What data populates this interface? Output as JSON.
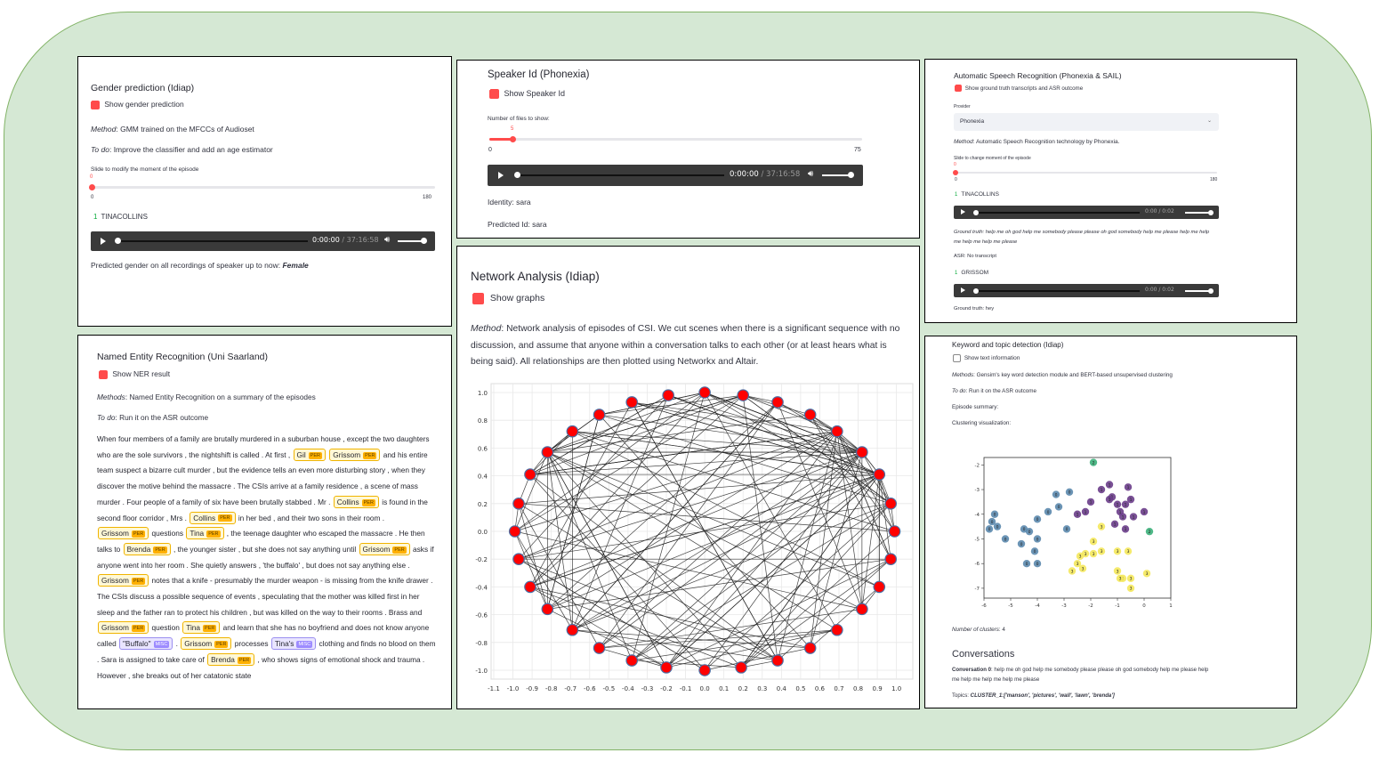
{
  "gender": {
    "title": "Gender prediction (Idiap)",
    "checkbox_label": "Show gender prediction",
    "method_label": "Method",
    "method_text": ": GMM trained on the MFCCs of Audioset",
    "todo_label": "To do",
    "todo_text": ": Improve the classifier and add an age estimator",
    "slider_label": "Slide to modify the moment of the episode",
    "slider_value": "0",
    "slider_min": "0",
    "slider_max": "180",
    "speaker_index": "1",
    "speaker_name": "TINACOLLINS",
    "audio_time": "0:00:00",
    "audio_duration": "/ 37:16:58",
    "prediction_text": "Predicted gender on all recordings of speaker up to now:",
    "prediction_value": "Female"
  },
  "speaker_id": {
    "title": "Speaker Id (Phonexia)",
    "checkbox_label": "Show Speaker Id",
    "slider_label": "Number of files to show:",
    "slider_value": "5",
    "slider_value_fraction": 0.053,
    "slider_min": "0",
    "slider_max": "75",
    "audio_time": "0:00:00",
    "audio_duration": "/ 37:16:58",
    "identity_label": "Identity: sara",
    "predicted_label": "Predicted Id: sara"
  },
  "asr": {
    "title": "Automatic Speech Recognition (Phonexia & SAIL)",
    "checkbox_label": "Show ground truth transcripts and ASR outcome",
    "provider_label": "Provider",
    "provider_value": "Phonexia",
    "method_label": "Method",
    "method_text": ": Automatic Speech Recognition technology by Phonexia.",
    "slider_label": "Slide to change moment of the episode",
    "slider_value": "0",
    "slider_min": "0",
    "slider_max": "180",
    "speaker1_index": "1",
    "speaker1_name": "TINACOLLINS",
    "audio1_time": "0:00 / 0:02",
    "ground_truth1": "Ground truth: help me oh god help me somebody please please oh god somebody help me please help me help me help me help me please",
    "asr1": "ASR: No transcript",
    "speaker2_index": "1",
    "speaker2_name": "GRISSOM",
    "audio2_time": "0:00 / 0:02",
    "ground_truth2": "Ground truth: hey"
  },
  "network": {
    "title": "Network Analysis (Idiap)",
    "checkbox_label": "Show graphs",
    "method_label": "Method",
    "method_text": ": Network analysis of episodes of CSI. We cut scenes when there is a significant sequence with no discussion, and assume that anyone within a conversation talks to each other (or at least hears what is being said). All relationships are then plotted using Networkx and Altair.",
    "x_ticks": [
      "-1.1",
      "-1.0",
      "-0.9",
      "-0.8",
      "-0.7",
      "-0.6",
      "-0.5",
      "-0.4",
      "-0.3",
      "-0.2",
      "-0.1",
      "0.0",
      "0.1",
      "0.2",
      "0.3",
      "0.4",
      "0.5",
      "0.6",
      "0.7",
      "0.8",
      "0.9",
      "1.0"
    ],
    "y_ticks": [
      "1.0",
      "0.8",
      "0.6",
      "0.4",
      "0.2",
      "0.0",
      "-0.2",
      "-0.4",
      "-0.6",
      "-0.8",
      "-1.0"
    ],
    "node_color": "#ff0000",
    "node_stroke": "#4a6fa5"
  },
  "ner": {
    "title": "Named Entity Recognition (Uni Saarland)",
    "checkbox_label": "Show NER result",
    "method_label": "Methods",
    "method_text": ": Named Entity Recognition on a summary of the episodes",
    "todo_label": "To do",
    "todo_text": ": Run it on the ASR outcome",
    "per_tag": "PER",
    "misc_tag": "MISC",
    "segments": [
      {
        "t": "When four members of a family are brutally murdered in a suburban house , except the two daughters who are the sole survivors , the nightshift is called . At first , "
      },
      {
        "e": "Gil",
        "tag": "PER"
      },
      {
        "t": " "
      },
      {
        "e": "Grissom",
        "tag": "PER"
      },
      {
        "t": " and his entire team suspect a bizarre cult murder , but the evidence tells an even more disturbing story , when they discover the motive behind the massacre . The CSIs arrive at a family residence , a scene of mass murder . Four people of a family of six have been brutally stabbed . Mr . "
      },
      {
        "e": "Collins",
        "tag": "PER"
      },
      {
        "t": " is found in the second floor corridor , Mrs . "
      },
      {
        "e": "Collins",
        "tag": "PER"
      },
      {
        "t": " in her bed , and their two sons in their room . "
      },
      {
        "e": "Grissom",
        "tag": "PER"
      },
      {
        "t": " questions "
      },
      {
        "e": "Tina",
        "tag": "PER"
      },
      {
        "t": " , the teenage daughter who escaped the massacre . He then talks to "
      },
      {
        "e": "Brenda",
        "tag": "PER"
      },
      {
        "t": " , the younger sister , but she does not say anything until "
      },
      {
        "e": "Grissom",
        "tag": "PER"
      },
      {
        "t": " asks if anyone went into her room . She quietly answers , 'the buffalo' , but does not say anything else . "
      },
      {
        "e": "Grissom",
        "tag": "PER"
      },
      {
        "t": " notes that a knife - presumably the murder weapon - is missing from the knife drawer . The CSIs discuss a possible sequence of events , speculating that the mother was killed first in her sleep and the father ran to protect his children , but was killed on the way to their rooms . Brass and "
      },
      {
        "e": "Grissom",
        "tag": "PER"
      },
      {
        "t": " question "
      },
      {
        "e": "Tina",
        "tag": "PER"
      },
      {
        "t": " and learn that she has no boyfriend and does not know anyone called "
      },
      {
        "e": "\"Buffalo\"",
        "tag": "MISC"
      },
      {
        "t": " . "
      },
      {
        "e": "Grissom",
        "tag": "PER"
      },
      {
        "t": " processes "
      },
      {
        "e": "Tina's",
        "tag": "MISC"
      },
      {
        "t": " clothing and finds no blood on them . Sara is assigned to take care of "
      },
      {
        "e": "Brenda",
        "tag": "PER"
      },
      {
        "t": " , who shows signs of emotional shock and trauma . However , she breaks out of her catatonic state"
      }
    ]
  },
  "keyword": {
    "title": "Keyword and topic detection (Idiap)",
    "checkbox_label": "Show text information",
    "method_label": "Methods",
    "method_text": ": Gensim's key word detection module and BERT-based unsupervised clustering",
    "todo_label": "To do",
    "todo_text": ": Run it on the ASR outcome",
    "summary_label": "Episode summary:",
    "clustering_label": "Clustering visualization:",
    "clusters_label": "Number of clusters",
    "clusters_value": ": 4",
    "conversations_heading": "Conversations",
    "conv0_label": "Conversation 0",
    "conv0_text": ": help me oh god help me somebody please please oh god somebody help me please help me help me help me help me please",
    "topics_label": "Topics",
    "topics_value": "CLUSTER_1:['manson', 'pictures', 'wall', 'lawn', 'brenda']",
    "x_ticks": [
      "-6",
      "-5",
      "-4",
      "-3",
      "-2",
      "-1",
      "0",
      "1"
    ],
    "y_ticks": [
      "-2",
      "-3",
      "-4",
      "-5",
      "-6",
      "-7"
    ],
    "colors": {
      "green": "#3cb07a",
      "blue": "#5b88ad",
      "purple": "#6a3d8a",
      "yellow": "#f4e85c"
    }
  },
  "chart_data": [
    {
      "type": "scatter",
      "title": "",
      "xlabel": "",
      "ylabel": "",
      "xlim": [
        -1.1,
        1.0
      ],
      "ylim": [
        -1.0,
        1.0
      ],
      "series": [
        {
          "points": [
            [
              0.0,
              1.0
            ],
            [
              -0.19,
              0.98
            ],
            [
              0.2,
              0.98
            ],
            [
              -0.38,
              0.93
            ],
            [
              0.38,
              0.93
            ],
            [
              -0.55,
              0.84
            ],
            [
              0.55,
              0.84
            ],
            [
              -0.69,
              0.72
            ],
            [
              0.69,
              0.72
            ],
            [
              -0.82,
              0.57
            ],
            [
              0.82,
              0.57
            ],
            [
              -0.91,
              0.41
            ],
            [
              0.91,
              0.41
            ],
            [
              -0.97,
              0.2
            ],
            [
              0.97,
              0.2
            ],
            [
              -0.99,
              0.0
            ],
            [
              0.99,
              0.0
            ],
            [
              -0.97,
              -0.2
            ],
            [
              0.97,
              -0.2
            ],
            [
              -0.91,
              -0.4
            ],
            [
              0.91,
              -0.4
            ],
            [
              -0.82,
              -0.56
            ],
            [
              0.82,
              -0.56
            ],
            [
              -0.69,
              -0.71
            ],
            [
              0.69,
              -0.71
            ],
            [
              -0.55,
              -0.84
            ],
            [
              0.55,
              -0.84
            ],
            [
              -0.38,
              -0.93
            ],
            [
              0.38,
              -0.93
            ],
            [
              -0.2,
              -0.98
            ],
            [
              0.19,
              -0.98
            ],
            [
              0.0,
              -1.0
            ]
          ]
        }
      ]
    },
    {
      "type": "scatter",
      "title": "",
      "xlabel": "",
      "ylabel": "",
      "xlim": [
        -6,
        1
      ],
      "ylim": [
        -7.4,
        -1.7
      ],
      "series": [
        {
          "cluster": 2,
          "points": [
            [
              -1.9,
              -1.9
            ],
            [
              0.2,
              -4.7
            ]
          ]
        },
        {
          "cluster": 1,
          "points": [
            [
              -1.6,
              -3.0
            ],
            [
              -1.3,
              -2.8
            ],
            [
              -1.2,
              -3.3
            ],
            [
              -0.6,
              -2.9
            ],
            [
              -0.5,
              -3.4
            ],
            [
              -2.0,
              -3.5
            ],
            [
              -2.5,
              -4.0
            ],
            [
              -2.2,
              -3.9
            ],
            [
              -1.0,
              -3.6
            ],
            [
              -0.7,
              -3.6
            ],
            [
              -0.9,
              -3.9
            ],
            [
              -0.8,
              -4.1
            ],
            [
              -0.4,
              -4.1
            ],
            [
              -1.1,
              -4.4
            ],
            [
              -0.7,
              -4.6
            ],
            [
              0.0,
              -3.9
            ],
            [
              -1.3,
              -3.4
            ]
          ]
        },
        {
          "cluster": 0,
          "points": [
            [
              -5.6,
              -4.0
            ],
            [
              -5.7,
              -4.3
            ],
            [
              -5.5,
              -4.5
            ],
            [
              -5.8,
              -4.6
            ],
            [
              -4.5,
              -4.6
            ],
            [
              -3.3,
              -3.2
            ],
            [
              -3.2,
              -3.7
            ],
            [
              -3.6,
              -3.9
            ],
            [
              -2.8,
              -3.1
            ],
            [
              -4.3,
              -4.7
            ],
            [
              -4.0,
              -4.2
            ],
            [
              -2.9,
              -4.6
            ],
            [
              -4.0,
              -5.0
            ],
            [
              -5.2,
              -5.0
            ],
            [
              -4.6,
              -5.2
            ],
            [
              -4.1,
              -5.5
            ],
            [
              -4.4,
              -6.0
            ],
            [
              -4.0,
              -6.0
            ]
          ]
        },
        {
          "cluster": 3,
          "points": [
            [
              -1.6,
              -4.5
            ],
            [
              -1.9,
              -5.1
            ],
            [
              -1.6,
              -5.5
            ],
            [
              -1.9,
              -5.6
            ],
            [
              -2.2,
              -5.6
            ],
            [
              -2.4,
              -5.7
            ],
            [
              -2.3,
              -6.2
            ],
            [
              -2.7,
              -6.3
            ],
            [
              -2.5,
              -6.0
            ],
            [
              -1.0,
              -5.5
            ],
            [
              -0.6,
              -5.5
            ],
            [
              -1.0,
              -6.3
            ],
            [
              -0.8,
              -6.6
            ],
            [
              -0.5,
              -6.6
            ],
            [
              0.1,
              -6.4
            ],
            [
              -0.5,
              -7.0
            ],
            [
              -0.9,
              -6.6
            ]
          ]
        }
      ]
    }
  ]
}
